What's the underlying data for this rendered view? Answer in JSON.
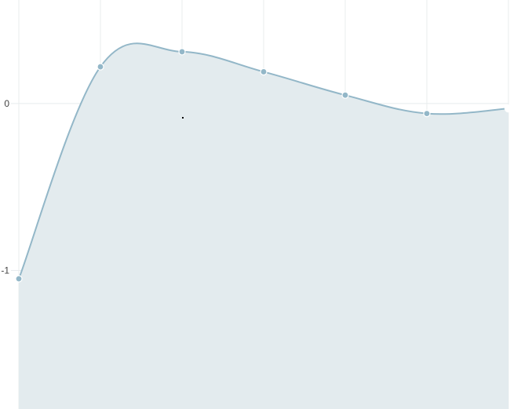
{
  "chart_data": {
    "type": "area",
    "x": [
      0,
      1,
      2,
      3,
      4,
      5,
      6
    ],
    "series": [
      {
        "values": [
          -1.05,
          0.22,
          0.31,
          0.19,
          0.05,
          -0.06,
          -0.03
        ]
      }
    ],
    "yticks": [
      {
        "value": 0,
        "label": "0"
      },
      {
        "value": -1,
        "label": "-1"
      }
    ],
    "ylim": [
      -1.83,
      0.62
    ],
    "xlim": [
      0,
      6
    ],
    "grid": true,
    "highlighted_point_index": 6,
    "colors": {
      "line": "#93b7c8",
      "fill": "#e3ebee",
      "point": "#93b7c8",
      "grid": "#e8ecee"
    }
  }
}
